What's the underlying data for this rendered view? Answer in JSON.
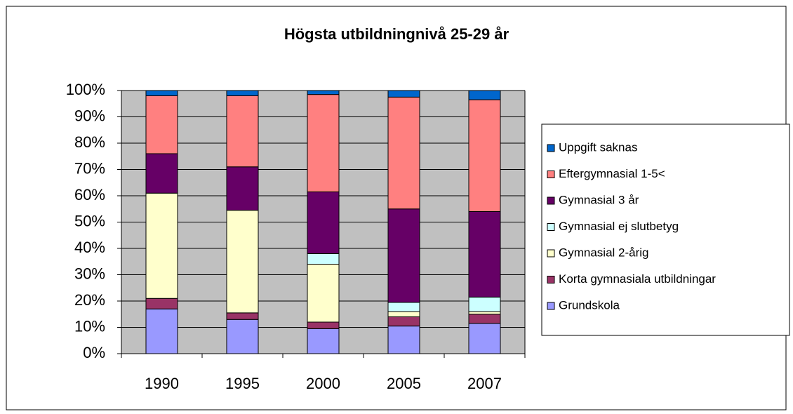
{
  "chart_data": {
    "type": "bar",
    "stacked": true,
    "title": "Högsta utbildningnivå 25-29 år",
    "categories": [
      "1990",
      "1995",
      "2000",
      "2005",
      "2007"
    ],
    "series": [
      {
        "name": "Grundskola",
        "color": "#9999ff",
        "values": [
          17,
          13,
          9.5,
          10.5,
          11.5
        ]
      },
      {
        "name": "Korta gymnasiala utbildningar",
        "color": "#993366",
        "values": [
          4,
          2.5,
          2.5,
          3.5,
          3.5
        ]
      },
      {
        "name": "Gymnasial 2-årig",
        "color": "#ffffcc",
        "values": [
          40,
          39,
          22,
          2,
          1
        ]
      },
      {
        "name": "Gymnasial ej slutbetyg",
        "color": "#ccffff",
        "values": [
          0,
          0,
          4,
          3.5,
          5.5
        ]
      },
      {
        "name": "Gymnasial 3 år",
        "color": "#660066",
        "values": [
          15,
          16.5,
          23.5,
          35.5,
          32.5
        ]
      },
      {
        "name": "Eftergymnasial 1-5<",
        "color": "#ff8080",
        "values": [
          22,
          27,
          37,
          42.5,
          42.5
        ]
      },
      {
        "name": "Uppgift saknas",
        "color": "#0066cc",
        "values": [
          2,
          2,
          1.5,
          2.5,
          3.5
        ]
      }
    ],
    "ylim": [
      0,
      100
    ],
    "yticks": [
      {
        "value": 0,
        "label": "0%"
      },
      {
        "value": 10,
        "label": "10%"
      },
      {
        "value": 20,
        "label": "20%"
      },
      {
        "value": 30,
        "label": "30%"
      },
      {
        "value": 40,
        "label": "40%"
      },
      {
        "value": 50,
        "label": "50%"
      },
      {
        "value": 60,
        "label": "60%"
      },
      {
        "value": 70,
        "label": "70%"
      },
      {
        "value": 80,
        "label": "80%"
      },
      {
        "value": 90,
        "label": "90%"
      },
      {
        "value": 100,
        "label": "100%"
      }
    ],
    "grid": true,
    "legend": "right"
  }
}
